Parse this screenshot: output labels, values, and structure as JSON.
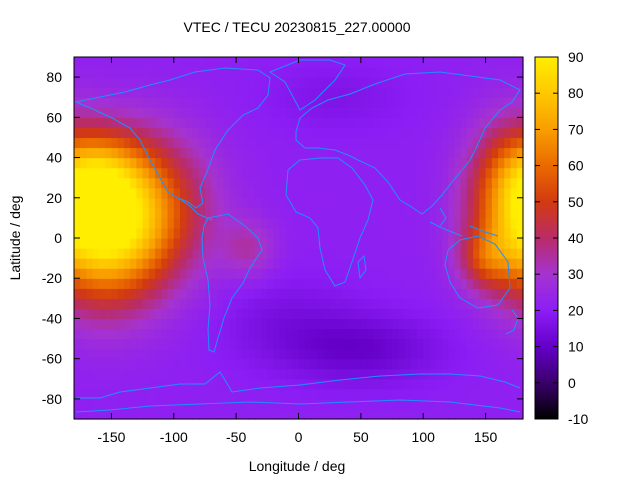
{
  "chart_data": {
    "type": "heatmap",
    "title": "VTEC / TECU 20230815_227.00000",
    "xlabel": "Longitude / deg",
    "ylabel": "Latitude / deg",
    "xlim": [
      -180,
      180
    ],
    "ylim": [
      -90,
      90
    ],
    "xticks": [
      -150,
      -100,
      -50,
      0,
      50,
      100,
      150
    ],
    "yticks": [
      -80,
      -60,
      -40,
      -20,
      0,
      20,
      40,
      60,
      80
    ],
    "colorbar": {
      "range": [
        -10,
        90
      ],
      "ticks": [
        -10,
        0,
        10,
        20,
        30,
        40,
        50,
        60,
        70,
        80,
        90
      ],
      "colors": [
        "#000000",
        "#3a006b",
        "#6400c8",
        "#8c1ef5",
        "#a533d0",
        "#b92c68",
        "#d23a10",
        "#ea6a00",
        "#f99e00",
        "#ffc800",
        "#ffee00"
      ]
    },
    "grid": false,
    "coastline_color": "#1e90ff",
    "field": {
      "background": 21,
      "sources": [
        {
          "lon": -155,
          "lat": 5,
          "amp": 55,
          "sigma_lon": 32,
          "sigma_lat": 26
        },
        {
          "lon": -120,
          "lat": 15,
          "amp": 30,
          "sigma_lon": 35,
          "sigma_lat": 25
        },
        {
          "lon": -160,
          "lat": 35,
          "amp": 18,
          "sigma_lon": 25,
          "sigma_lat": 12
        },
        {
          "lon": 170,
          "lat": 20,
          "amp": 32,
          "sigma_lon": 25,
          "sigma_lat": 25
        },
        {
          "lon": 150,
          "lat": -10,
          "amp": 20,
          "sigma_lon": 15,
          "sigma_lat": 10
        },
        {
          "lon": -40,
          "lat": -5,
          "amp": 12,
          "sigma_lon": 15,
          "sigma_lat": 10
        },
        {
          "lon": 50,
          "lat": -55,
          "amp": -10,
          "sigma_lon": 45,
          "sigma_lat": 12
        },
        {
          "lon": -10,
          "lat": -40,
          "amp": -5,
          "sigma_lon": 40,
          "sigma_lat": 15
        },
        {
          "lon": 30,
          "lat": 70,
          "amp": -4,
          "sigma_lon": 40,
          "sigma_lat": 12
        }
      ]
    }
  }
}
